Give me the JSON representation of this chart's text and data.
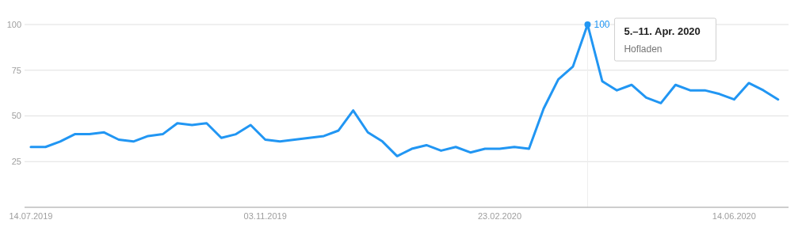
{
  "chart_data": {
    "type": "line",
    "x": [
      "2019-07-14",
      "2019-07-21",
      "2019-07-28",
      "2019-08-04",
      "2019-08-11",
      "2019-08-18",
      "2019-08-25",
      "2019-09-01",
      "2019-09-08",
      "2019-09-15",
      "2019-09-22",
      "2019-09-29",
      "2019-10-06",
      "2019-10-13",
      "2019-10-20",
      "2019-10-27",
      "2019-11-03",
      "2019-11-10",
      "2019-11-17",
      "2019-11-24",
      "2019-12-01",
      "2019-12-08",
      "2019-12-15",
      "2019-12-22",
      "2019-12-29",
      "2020-01-05",
      "2020-01-12",
      "2020-01-19",
      "2020-01-26",
      "2020-02-02",
      "2020-02-09",
      "2020-02-16",
      "2020-02-23",
      "2020-03-01",
      "2020-03-08",
      "2020-03-15",
      "2020-03-22",
      "2020-03-29",
      "2020-04-05",
      "2020-04-12",
      "2020-04-19",
      "2020-04-26",
      "2020-05-03",
      "2020-05-10",
      "2020-05-17",
      "2020-05-24",
      "2020-05-31",
      "2020-06-07",
      "2020-06-14",
      "2020-06-21",
      "2020-06-28",
      "2020-07-05"
    ],
    "series": [
      {
        "name": "Hofladen",
        "color": "#2196f3",
        "values": [
          33,
          33,
          36,
          40,
          40,
          41,
          37,
          36,
          39,
          40,
          46,
          45,
          46,
          38,
          40,
          45,
          37,
          36,
          37,
          38,
          39,
          42,
          53,
          41,
          36,
          28,
          32,
          34,
          31,
          33,
          30,
          32,
          32,
          33,
          32,
          54,
          70,
          77,
          100,
          69,
          64,
          67,
          60,
          57,
          67,
          64,
          64,
          62,
          59,
          68,
          64,
          59
        ],
        "value_labels": [
          null,
          null,
          null,
          null,
          null,
          null,
          null,
          null,
          null,
          null,
          null,
          null,
          null,
          null,
          null,
          null,
          null,
          null,
          null,
          null,
          null,
          null,
          null,
          null,
          null,
          null,
          null,
          null,
          null,
          null,
          null,
          null,
          null,
          null,
          null,
          null,
          null,
          null,
          "100",
          null,
          null,
          null,
          null,
          null,
          null,
          null,
          null,
          null,
          null,
          null,
          null,
          null
        ]
      }
    ],
    "annotations": [
      "5.–11. Apr. 2020"
    ],
    "ref_lines": [
      {
        "axis": "x",
        "value": "2020-04-05",
        "color": "#eeeeee"
      }
    ],
    "xlim": [
      "2019-07-11",
      "2020-07-10"
    ],
    "xticks": [
      {
        "value": "2019-07-14",
        "label": "14.07.2019"
      },
      {
        "value": "2019-11-03",
        "label": "03.11.2019"
      },
      {
        "value": "2020-02-23",
        "label": "23.02.2020"
      },
      {
        "value": "2020-06-14",
        "label": "14.06.2020"
      }
    ],
    "ylim": [
      0,
      100
    ],
    "yticks": [
      25,
      50,
      75,
      100
    ],
    "grid": "y",
    "legend": false,
    "marker": "none",
    "line_style": "solid"
  }
}
